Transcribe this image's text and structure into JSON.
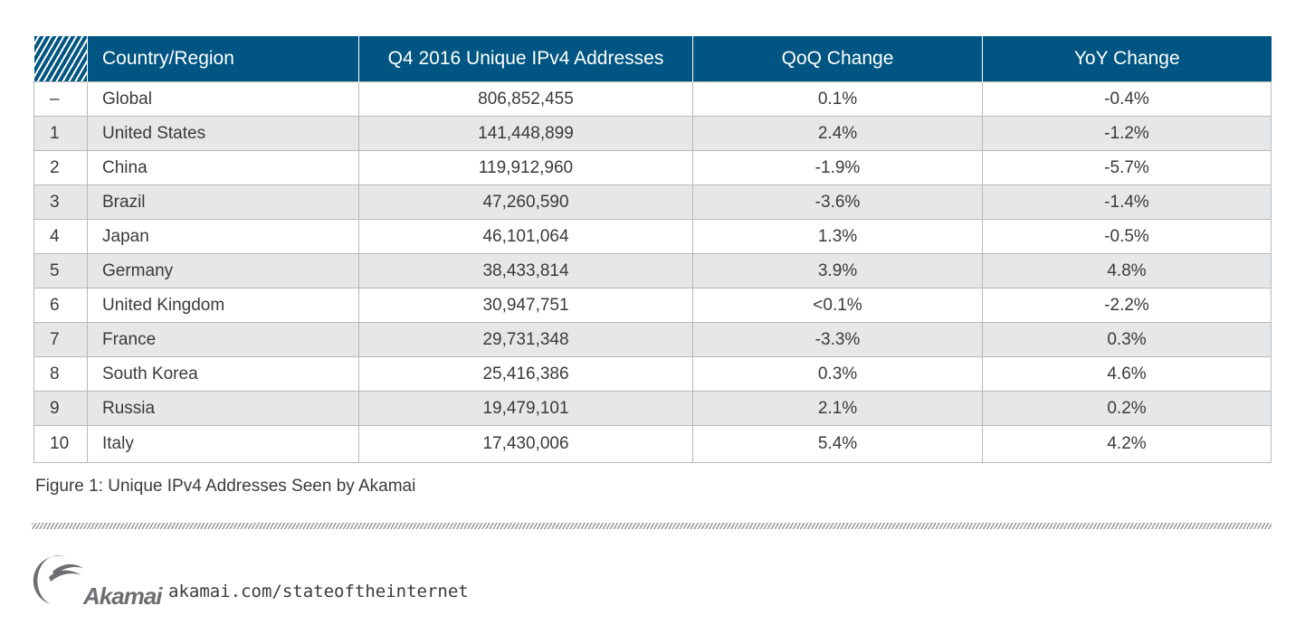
{
  "chart_data": {
    "type": "table",
    "columns": [
      "",
      "Country/Region",
      "Q4 2016 Unique IPv4 Addresses",
      "QoQ Change",
      "YoY Change"
    ],
    "rows": [
      {
        "rank": "–",
        "region": "Global",
        "addresses": "806,852,455",
        "qoq": "0.1%",
        "yoy": "-0.4%"
      },
      {
        "rank": "1",
        "region": "United States",
        "addresses": "141,448,899",
        "qoq": "2.4%",
        "yoy": "-1.2%"
      },
      {
        "rank": "2",
        "region": "China",
        "addresses": "119,912,960",
        "qoq": "-1.9%",
        "yoy": "-5.7%"
      },
      {
        "rank": "3",
        "region": "Brazil",
        "addresses": "47,260,590",
        "qoq": "-3.6%",
        "yoy": "-1.4%"
      },
      {
        "rank": "4",
        "region": "Japan",
        "addresses": "46,101,064",
        "qoq": "1.3%",
        "yoy": "-0.5%"
      },
      {
        "rank": "5",
        "region": "Germany",
        "addresses": "38,433,814",
        "qoq": "3.9%",
        "yoy": "4.8%"
      },
      {
        "rank": "6",
        "region": "United Kingdom",
        "addresses": "30,947,751",
        "qoq": "<0.1%",
        "yoy": "-2.2%"
      },
      {
        "rank": "7",
        "region": "France",
        "addresses": "29,731,348",
        "qoq": "-3.3%",
        "yoy": "0.3%"
      },
      {
        "rank": "8",
        "region": "South Korea",
        "addresses": "25,416,386",
        "qoq": "0.3%",
        "yoy": "4.6%"
      },
      {
        "rank": "9",
        "region": "Russia",
        "addresses": "19,479,101",
        "qoq": "2.1%",
        "yoy": "0.2%"
      },
      {
        "rank": "10",
        "region": "Italy",
        "addresses": "17,430,006",
        "qoq": "5.4%",
        "yoy": "4.2%"
      }
    ]
  },
  "caption": "Figure 1: Unique IPv4 Addresses Seen by Akamai",
  "footer": {
    "logo_text": "Akamai",
    "url": "akamai.com/stateoftheinternet"
  },
  "colors": {
    "header": "#005582",
    "row_alt": "#e6e7e8",
    "border": "#b9b9b9",
    "logo": "#6d6e71"
  }
}
